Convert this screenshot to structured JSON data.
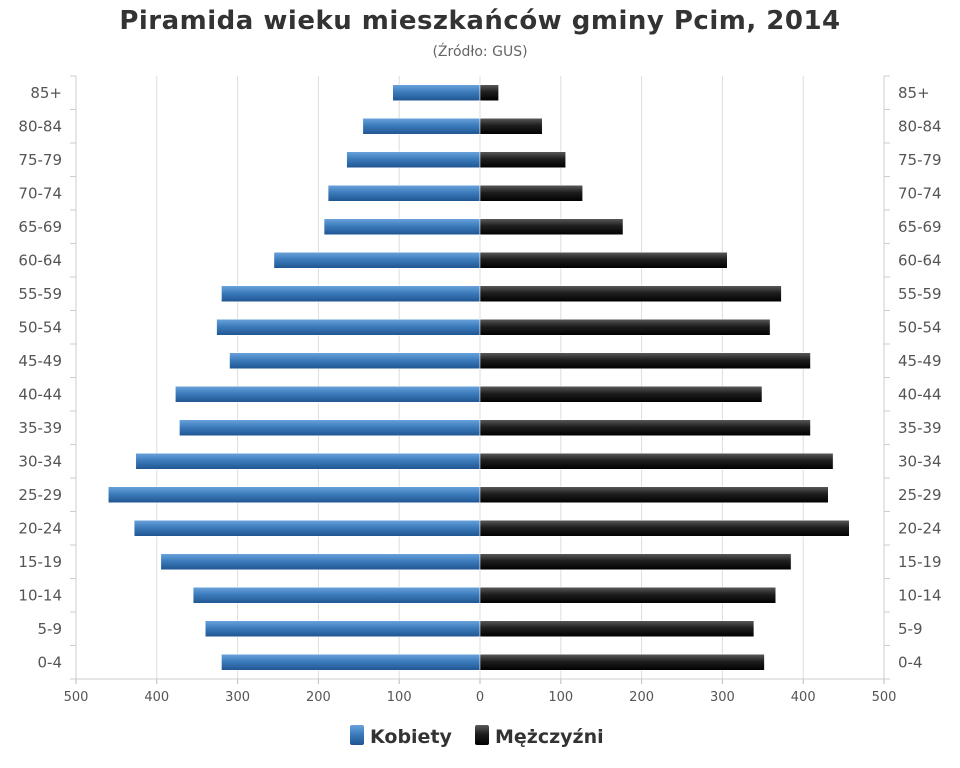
{
  "chart_data": {
    "type": "bar",
    "orientation": "horizontal",
    "title": "Piramida wieku mieszkańców gminy Pcim, 2014",
    "subtitle": "(Źródło: GUS)",
    "categories": [
      "0-4",
      "5-9",
      "10-14",
      "15-19",
      "20-24",
      "25-29",
      "30-34",
      "35-39",
      "40-44",
      "45-49",
      "50-54",
      "55-59",
      "60-64",
      "65-69",
      "70-74",
      "75-79",
      "80-84",
      "85+"
    ],
    "series": [
      {
        "name": "Kobiety",
        "color": "#3a78b7",
        "values": [
          320,
          340,
          355,
          395,
          428,
          460,
          426,
          372,
          377,
          310,
          326,
          320,
          255,
          193,
          188,
          165,
          145,
          108
        ]
      },
      {
        "name": "Mężczyźni",
        "color": "#1a1a1a",
        "values": [
          352,
          339,
          366,
          385,
          457,
          431,
          437,
          409,
          349,
          409,
          359,
          373,
          306,
          177,
          127,
          106,
          77,
          23
        ]
      }
    ],
    "x_tick_labels": [
      "500",
      "400",
      "300",
      "200",
      "100",
      "0",
      "100",
      "200",
      "300",
      "400",
      "500"
    ],
    "xlim": [
      -500,
      500
    ],
    "grid": true,
    "legend_position": "bottom-center"
  }
}
